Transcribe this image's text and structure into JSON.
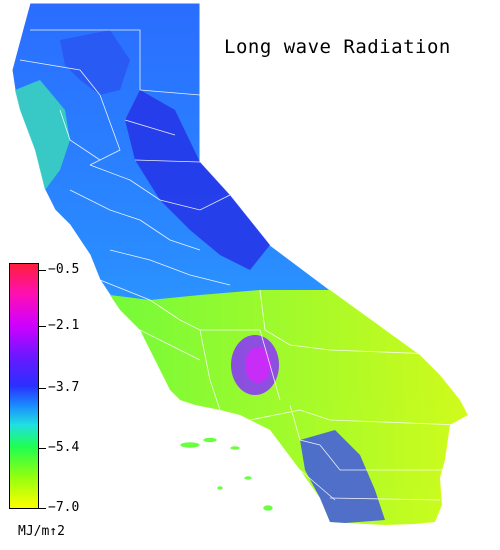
{
  "title": "Long wave Radiation",
  "legend": {
    "ticks": [
      "−0.5",
      "−2.1",
      "−3.7",
      "−5.4",
      "−7.0"
    ],
    "units": "MJ/m↑2",
    "colors": [
      "#ff1e3c",
      "#e600ff",
      "#7a20ff",
      "#2a2cff",
      "#1e90ff",
      "#20e8e0",
      "#20ff60",
      "#6aff20",
      "#c8ff00",
      "#ffff00"
    ]
  },
  "map": {
    "region": "California",
    "border_color": "#ffffff"
  }
}
